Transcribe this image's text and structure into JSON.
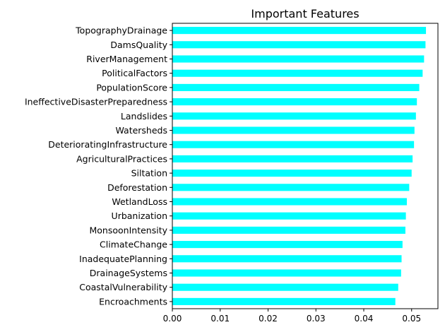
{
  "chart_data": {
    "type": "bar",
    "orientation": "horizontal",
    "title": "Important Features",
    "xlabel": "",
    "ylabel": "",
    "bar_color": "#00ffff",
    "grid": false,
    "xlim": [
      0.0,
      0.0555
    ],
    "xticks": [
      0.0,
      0.01,
      0.02,
      0.03,
      0.04,
      0.05
    ],
    "xtick_labels": [
      "0.00",
      "0.01",
      "0.02",
      "0.03",
      "0.04",
      "0.05"
    ],
    "categories": [
      "TopographyDrainage",
      "DamsQuality",
      "RiverManagement",
      "PoliticalFactors",
      "PopulationScore",
      "IneffectiveDisasterPreparedness",
      "Landslides",
      "Watersheds",
      "DeterioratingInfrastructure",
      "AgriculturalPractices",
      "Siltation",
      "Deforestation",
      "WetlandLoss",
      "Urbanization",
      "MonsoonIntensity",
      "ClimateChange",
      "InadequatePlanning",
      "DrainageSystems",
      "CoastalVulnerability",
      "Encroachments"
    ],
    "values": [
      0.053,
      0.0529,
      0.0526,
      0.0523,
      0.0516,
      0.0511,
      0.0509,
      0.0506,
      0.0505,
      0.0502,
      0.05,
      0.0495,
      0.049,
      0.0488,
      0.0487,
      0.0481,
      0.0479,
      0.0478,
      0.0472,
      0.0466
    ]
  }
}
